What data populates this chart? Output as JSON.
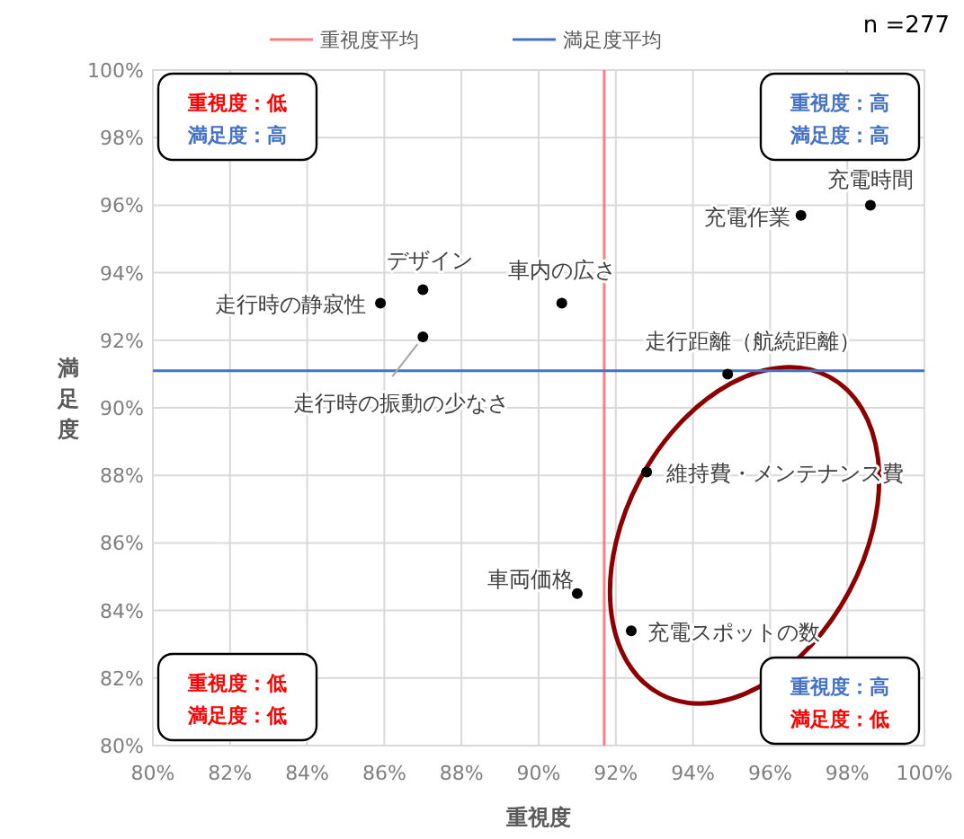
{
  "chart_data": {
    "type": "scatter",
    "xlabel": "重視度",
    "ylabel": "満足度",
    "xlim": [
      80,
      100
    ],
    "ylim": [
      80,
      100
    ],
    "xticks": [
      {
        "value": 80,
        "label": "80%"
      },
      {
        "value": 82,
        "label": "82%"
      },
      {
        "value": 84,
        "label": "84%"
      },
      {
        "value": 86,
        "label": "86%"
      },
      {
        "value": 88,
        "label": "88%"
      },
      {
        "value": 90,
        "label": "90%"
      },
      {
        "value": 92,
        "label": "92%"
      },
      {
        "value": 94,
        "label": "94%"
      },
      {
        "value": 96,
        "label": "96%"
      },
      {
        "value": 98,
        "label": "98%"
      },
      {
        "value": 100,
        "label": "100%"
      }
    ],
    "yticks": [
      {
        "value": 80,
        "label": "80%"
      },
      {
        "value": 82,
        "label": "82%"
      },
      {
        "value": 84,
        "label": "84%"
      },
      {
        "value": 86,
        "label": "86%"
      },
      {
        "value": 88,
        "label": "88%"
      },
      {
        "value": 90,
        "label": "90%"
      },
      {
        "value": 92,
        "label": "92%"
      },
      {
        "value": 94,
        "label": "94%"
      },
      {
        "value": 96,
        "label": "96%"
      },
      {
        "value": 98,
        "label": "98%"
      },
      {
        "value": 100,
        "label": "100%"
      }
    ],
    "grid": true,
    "marker": "circle",
    "legend": "top",
    "series": [
      {
        "name": "充電時間",
        "color": "#000000",
        "x": [
          98.6
        ],
        "values": [
          96.0
        ]
      },
      {
        "name": "充電作業",
        "color": "#000000",
        "x": [
          96.8
        ],
        "values": [
          95.7
        ]
      },
      {
        "name": "デザイン",
        "color": "#000000",
        "x": [
          87.0
        ],
        "values": [
          93.5
        ]
      },
      {
        "name": "走行時の静寂性",
        "color": "#000000",
        "x": [
          85.9
        ],
        "values": [
          93.1
        ]
      },
      {
        "name": "車内の広さ",
        "color": "#000000",
        "x": [
          90.6
        ],
        "values": [
          93.1
        ]
      },
      {
        "name": "走行時の振動の少なさ",
        "color": "#000000",
        "x": [
          87.0
        ],
        "values": [
          92.1
        ]
      },
      {
        "name": "走行距離（航続距離）",
        "color": "#000000",
        "x": [
          94.9
        ],
        "values": [
          91.0
        ]
      },
      {
        "name": "維持費・メンテナンス費",
        "color": "#000000",
        "x": [
          92.8
        ],
        "values": [
          88.1
        ]
      },
      {
        "name": "車両価格",
        "color": "#000000",
        "x": [
          91.0
        ],
        "values": [
          84.5
        ]
      },
      {
        "name": "充電スポットの数",
        "color": "#000000",
        "x": [
          92.4
        ],
        "values": [
          83.4
        ]
      }
    ],
    "ref_lines": [
      {
        "axis": "x",
        "value": 91.7,
        "label": "重視度平均",
        "color": "#ff7c80"
      },
      {
        "axis": "y",
        "value": 91.1,
        "label": "満足度平均",
        "color": "#4472c4"
      }
    ],
    "annotations": [
      "n =277",
      "重視度：低",
      "満足度：高",
      "重視度：高",
      "満足度：高",
      "重視度：低",
      "満足度：低",
      "重視度：高",
      "満足度：低"
    ]
  }
}
